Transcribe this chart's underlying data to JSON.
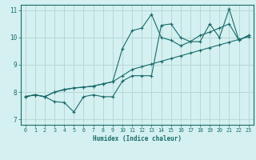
{
  "xlabel": "Humidex (Indice chaleur)",
  "xlim": [
    -0.5,
    23.5
  ],
  "ylim": [
    6.8,
    11.2
  ],
  "xticks": [
    0,
    1,
    2,
    3,
    4,
    5,
    6,
    7,
    8,
    9,
    10,
    11,
    12,
    13,
    14,
    15,
    16,
    17,
    18,
    19,
    20,
    21,
    22,
    23
  ],
  "yticks": [
    7,
    8,
    9,
    10,
    11
  ],
  "bg_color": "#d4f0f0",
  "grid_color": "#b8d8d8",
  "line_color": "#1a6b6b",
  "series": [
    [
      7.83,
      7.9,
      7.83,
      7.65,
      7.62,
      7.27,
      7.83,
      7.9,
      7.83,
      7.83,
      8.4,
      8.6,
      8.6,
      8.6,
      10.45,
      10.5,
      10.0,
      9.85,
      9.85,
      10.5,
      10.0,
      11.05,
      9.9,
      10.08
    ],
    [
      7.83,
      7.9,
      7.83,
      8.0,
      8.1,
      8.15,
      8.18,
      8.22,
      8.3,
      8.38,
      9.6,
      10.25,
      10.35,
      10.85,
      10.0,
      9.9,
      9.7,
      9.85,
      10.08,
      10.2,
      10.35,
      10.5,
      9.9,
      10.08
    ],
    [
      7.83,
      7.9,
      7.83,
      8.0,
      8.08,
      8.15,
      8.18,
      8.22,
      8.3,
      8.38,
      8.6,
      8.83,
      8.93,
      9.03,
      9.13,
      9.23,
      9.33,
      9.43,
      9.53,
      9.63,
      9.73,
      9.83,
      9.93,
      10.03
    ]
  ]
}
